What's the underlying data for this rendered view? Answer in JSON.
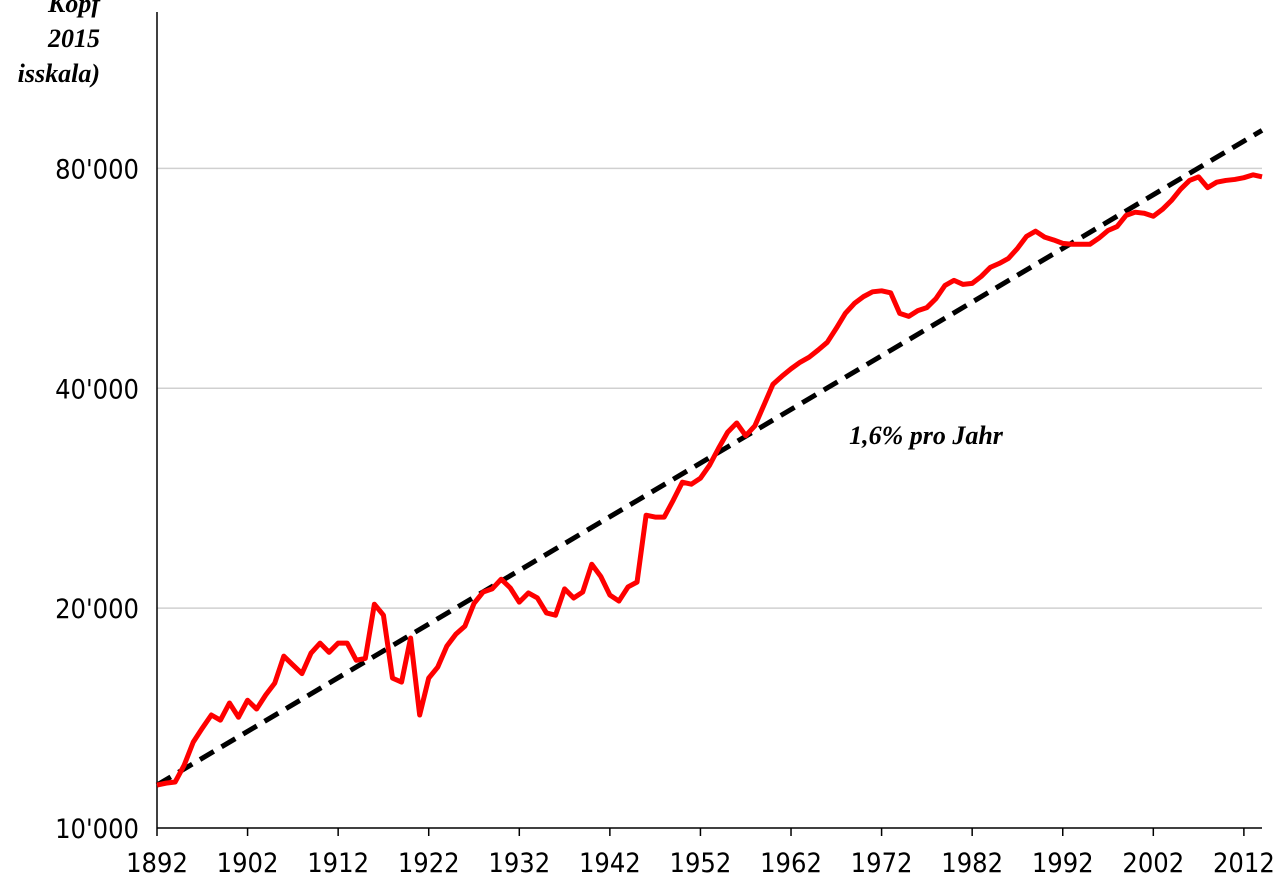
{
  "chart_data": {
    "type": "line",
    "title_lines": [
      "Kopf",
      "2015",
      "isskala)"
    ],
    "annotation": "1,6% pro Jahr",
    "log_y": true,
    "grid": true,
    "x": [
      1892,
      1893,
      1894,
      1895,
      1896,
      1897,
      1898,
      1899,
      1900,
      1901,
      1902,
      1903,
      1904,
      1905,
      1906,
      1907,
      1908,
      1909,
      1910,
      1911,
      1912,
      1913,
      1914,
      1915,
      1916,
      1917,
      1918,
      1919,
      1920,
      1921,
      1922,
      1923,
      1924,
      1925,
      1926,
      1927,
      1928,
      1929,
      1930,
      1931,
      1932,
      1933,
      1934,
      1935,
      1936,
      1937,
      1938,
      1939,
      1940,
      1941,
      1942,
      1943,
      1944,
      1945,
      1946,
      1947,
      1948,
      1949,
      1950,
      1951,
      1952,
      1953,
      1954,
      1955,
      1956,
      1957,
      1958,
      1959,
      1960,
      1961,
      1962,
      1963,
      1964,
      1965,
      1966,
      1967,
      1968,
      1969,
      1970,
      1971,
      1972,
      1973,
      1974,
      1975,
      1976,
      1977,
      1978,
      1979,
      1980,
      1981,
      1982,
      1983,
      1984,
      1985,
      1986,
      1987,
      1988,
      1989,
      1990,
      1991,
      1992,
      1993,
      1994,
      1995,
      1996,
      1997,
      1998,
      1999,
      2000,
      2001,
      2002,
      2003,
      2004,
      2005,
      2006,
      2007,
      2008,
      2009,
      2010,
      2011,
      2012,
      2013,
      2014
    ],
    "series": [
      {
        "color": "#ff0000",
        "values": [
          11450,
          11520,
          11560,
          12190,
          13110,
          13700,
          14280,
          14050,
          14830,
          14180,
          14960,
          14550,
          15210,
          15790,
          17190,
          16720,
          16270,
          17350,
          17910,
          17400,
          17910,
          17910,
          16970,
          17070,
          20250,
          19560,
          16040,
          15840,
          18200,
          14280,
          16040,
          16610,
          17740,
          18430,
          18900,
          20300,
          21040,
          21250,
          21910,
          21320,
          20380,
          20980,
          20650,
          19700,
          19560,
          21250,
          20650,
          21040,
          22970,
          22100,
          20840,
          20450,
          21380,
          21710,
          26810,
          26650,
          26650,
          28110,
          29750,
          29560,
          30130,
          31380,
          33110,
          34820,
          35860,
          34450,
          35520,
          37910,
          40500,
          41550,
          42530,
          43420,
          44120,
          45130,
          46240,
          48330,
          50660,
          52270,
          53400,
          54220,
          54390,
          54050,
          50660,
          50180,
          51100,
          51590,
          53070,
          55330,
          56210,
          55500,
          55680,
          56910,
          58560,
          59300,
          60240,
          62170,
          64570,
          65640,
          64420,
          63850,
          63160,
          62990,
          62990,
          62990,
          64220,
          65780,
          66610,
          69000,
          69690,
          69450,
          68800,
          70300,
          72300,
          74900,
          77030,
          77900,
          75300,
          76600,
          77030,
          77270,
          77700,
          78400,
          77900
        ]
      }
    ],
    "trend": {
      "color": "#000000",
      "x": [
        1892,
        2014
      ],
      "values": [
        11450,
        90200
      ]
    },
    "xlim": [
      1892,
      2014
    ],
    "xticks": [
      1892,
      1902,
      1912,
      1922,
      1932,
      1942,
      1952,
      1962,
      1972,
      1982,
      1992,
      2002,
      2012
    ],
    "ylim": [
      10000,
      131000
    ],
    "yticks": [
      {
        "value": 10000,
        "label": "10'000"
      },
      {
        "value": 20000,
        "label": "20'000"
      },
      {
        "value": 40000,
        "label": "40'000"
      },
      {
        "value": 80000,
        "label": "80'000"
      }
    ]
  }
}
